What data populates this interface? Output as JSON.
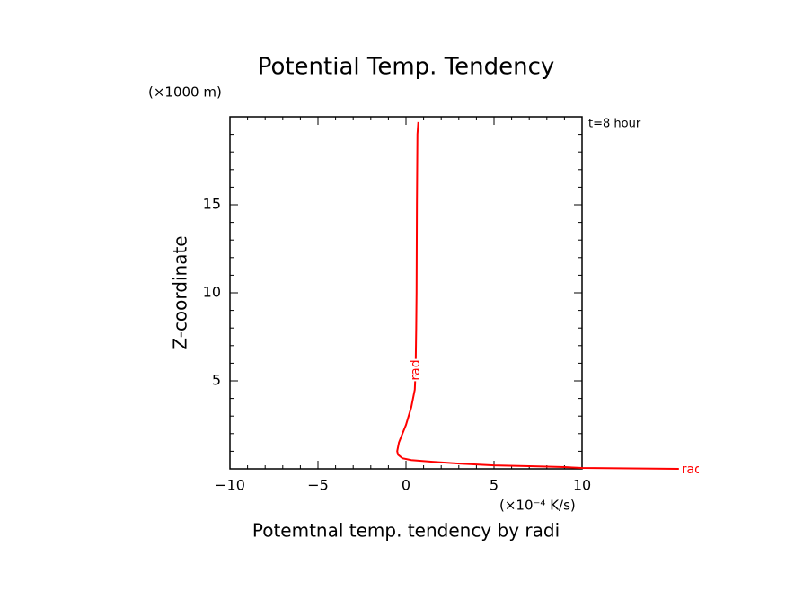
{
  "chart_data": {
    "type": "line",
    "title": "Potential Temp. Tendency",
    "y_unit_label": "(×1000 m)",
    "time_label": "t=8 hour",
    "ylabel": "Z-coordinate",
    "x_unit_label": "(×10⁻⁴ K/s)",
    "xlabel": "Potemtnal temp. tendency by radi",
    "xlim": [
      -10,
      10
    ],
    "ylim": [
      0,
      20
    ],
    "xticks": [
      {
        "value": -10,
        "label": "−10"
      },
      {
        "value": -5,
        "label": "−5"
      },
      0,
      5,
      10
    ],
    "yticks": [
      5,
      10,
      15
    ],
    "minor_tick_step": 1,
    "series": [
      {
        "name": "rad",
        "color": "#ff0000",
        "x": [
          0.7,
          0.65,
          0.62,
          0.6,
          0.58,
          0.55,
          0.52,
          0.5,
          0.4,
          0.3,
          0.15,
          0,
          -0.2,
          -0.4,
          -0.5,
          -0.45,
          -0.2,
          0.3,
          1.5,
          3,
          5,
          7,
          9,
          10,
          15.5
        ],
        "values": [
          19.7,
          19,
          15,
          10,
          8,
          6,
          5,
          4.5,
          4,
          3.5,
          3,
          2.5,
          2,
          1.5,
          1,
          0.8,
          0.6,
          0.5,
          0.4,
          0.3,
          0.2,
          0.15,
          0.1,
          0.05,
          0
        ]
      }
    ]
  }
}
